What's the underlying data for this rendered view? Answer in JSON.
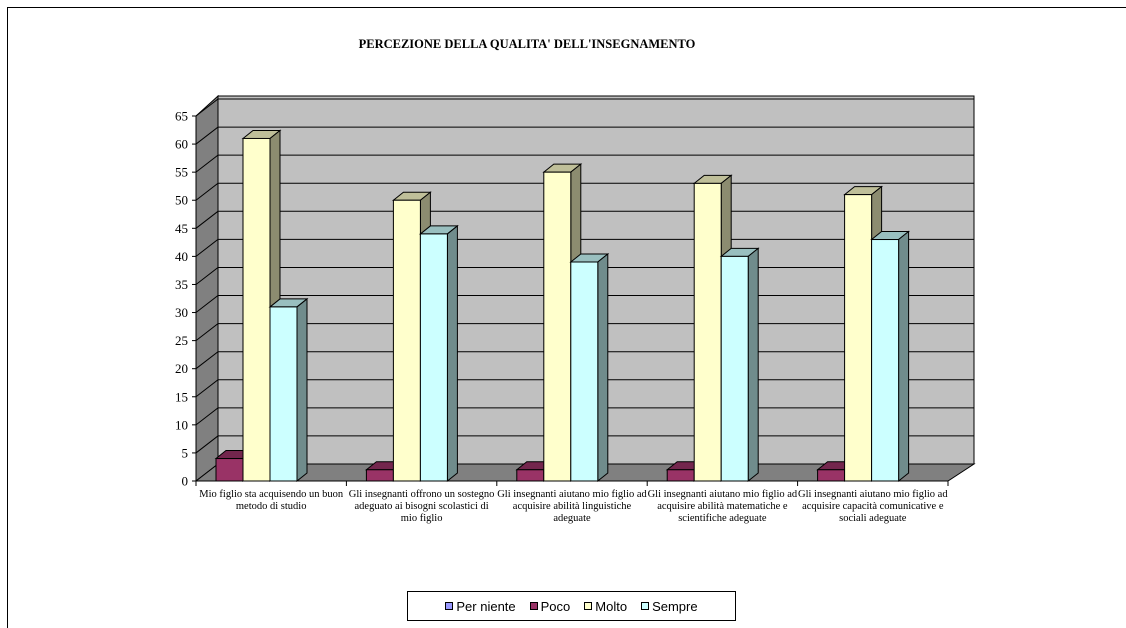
{
  "chart_data": {
    "type": "bar",
    "title": "PERCEZIONE DELLA QUALITA' DELL'INSEGNAMENTO",
    "xlabel": "",
    "ylabel": "",
    "ylim": [
      0,
      65
    ],
    "yticks": [
      "0",
      "5",
      "10",
      "15",
      "20",
      "25",
      "30",
      "35",
      "40",
      "45",
      "50",
      "55",
      "60",
      "65"
    ],
    "grid": true,
    "legend_position": "bottom",
    "categories": [
      "Mio figlio sta acquisendo un buon metodo di studio",
      "Gli insegnanti offrono un sostegno adeguato ai bisogni scolastici di mio figlio",
      "Gli insegnanti aiutano mio figlio ad acquisire abilità linguistiche adeguate",
      "Gli insegnanti aiutano mio figlio ad acquisire abilità matematiche e scientifiche adeguate",
      "Gli insegnanti aiutano mio figlio ad acquisire capacità comunicative e sociali adeguate"
    ],
    "series": [
      {
        "name": "Per niente",
        "values": [
          0,
          0,
          0,
          0,
          0
        ],
        "color": "#9999ff"
      },
      {
        "name": "Poco",
        "values": [
          4,
          2,
          2,
          2,
          2
        ],
        "color": "#993366"
      },
      {
        "name": "Molto",
        "values": [
          61,
          50,
          55,
          53,
          51
        ],
        "color": "#ffffcc"
      },
      {
        "name": "Sempre",
        "values": [
          31,
          44,
          39,
          40,
          43
        ],
        "color": "#ccffff"
      }
    ]
  }
}
